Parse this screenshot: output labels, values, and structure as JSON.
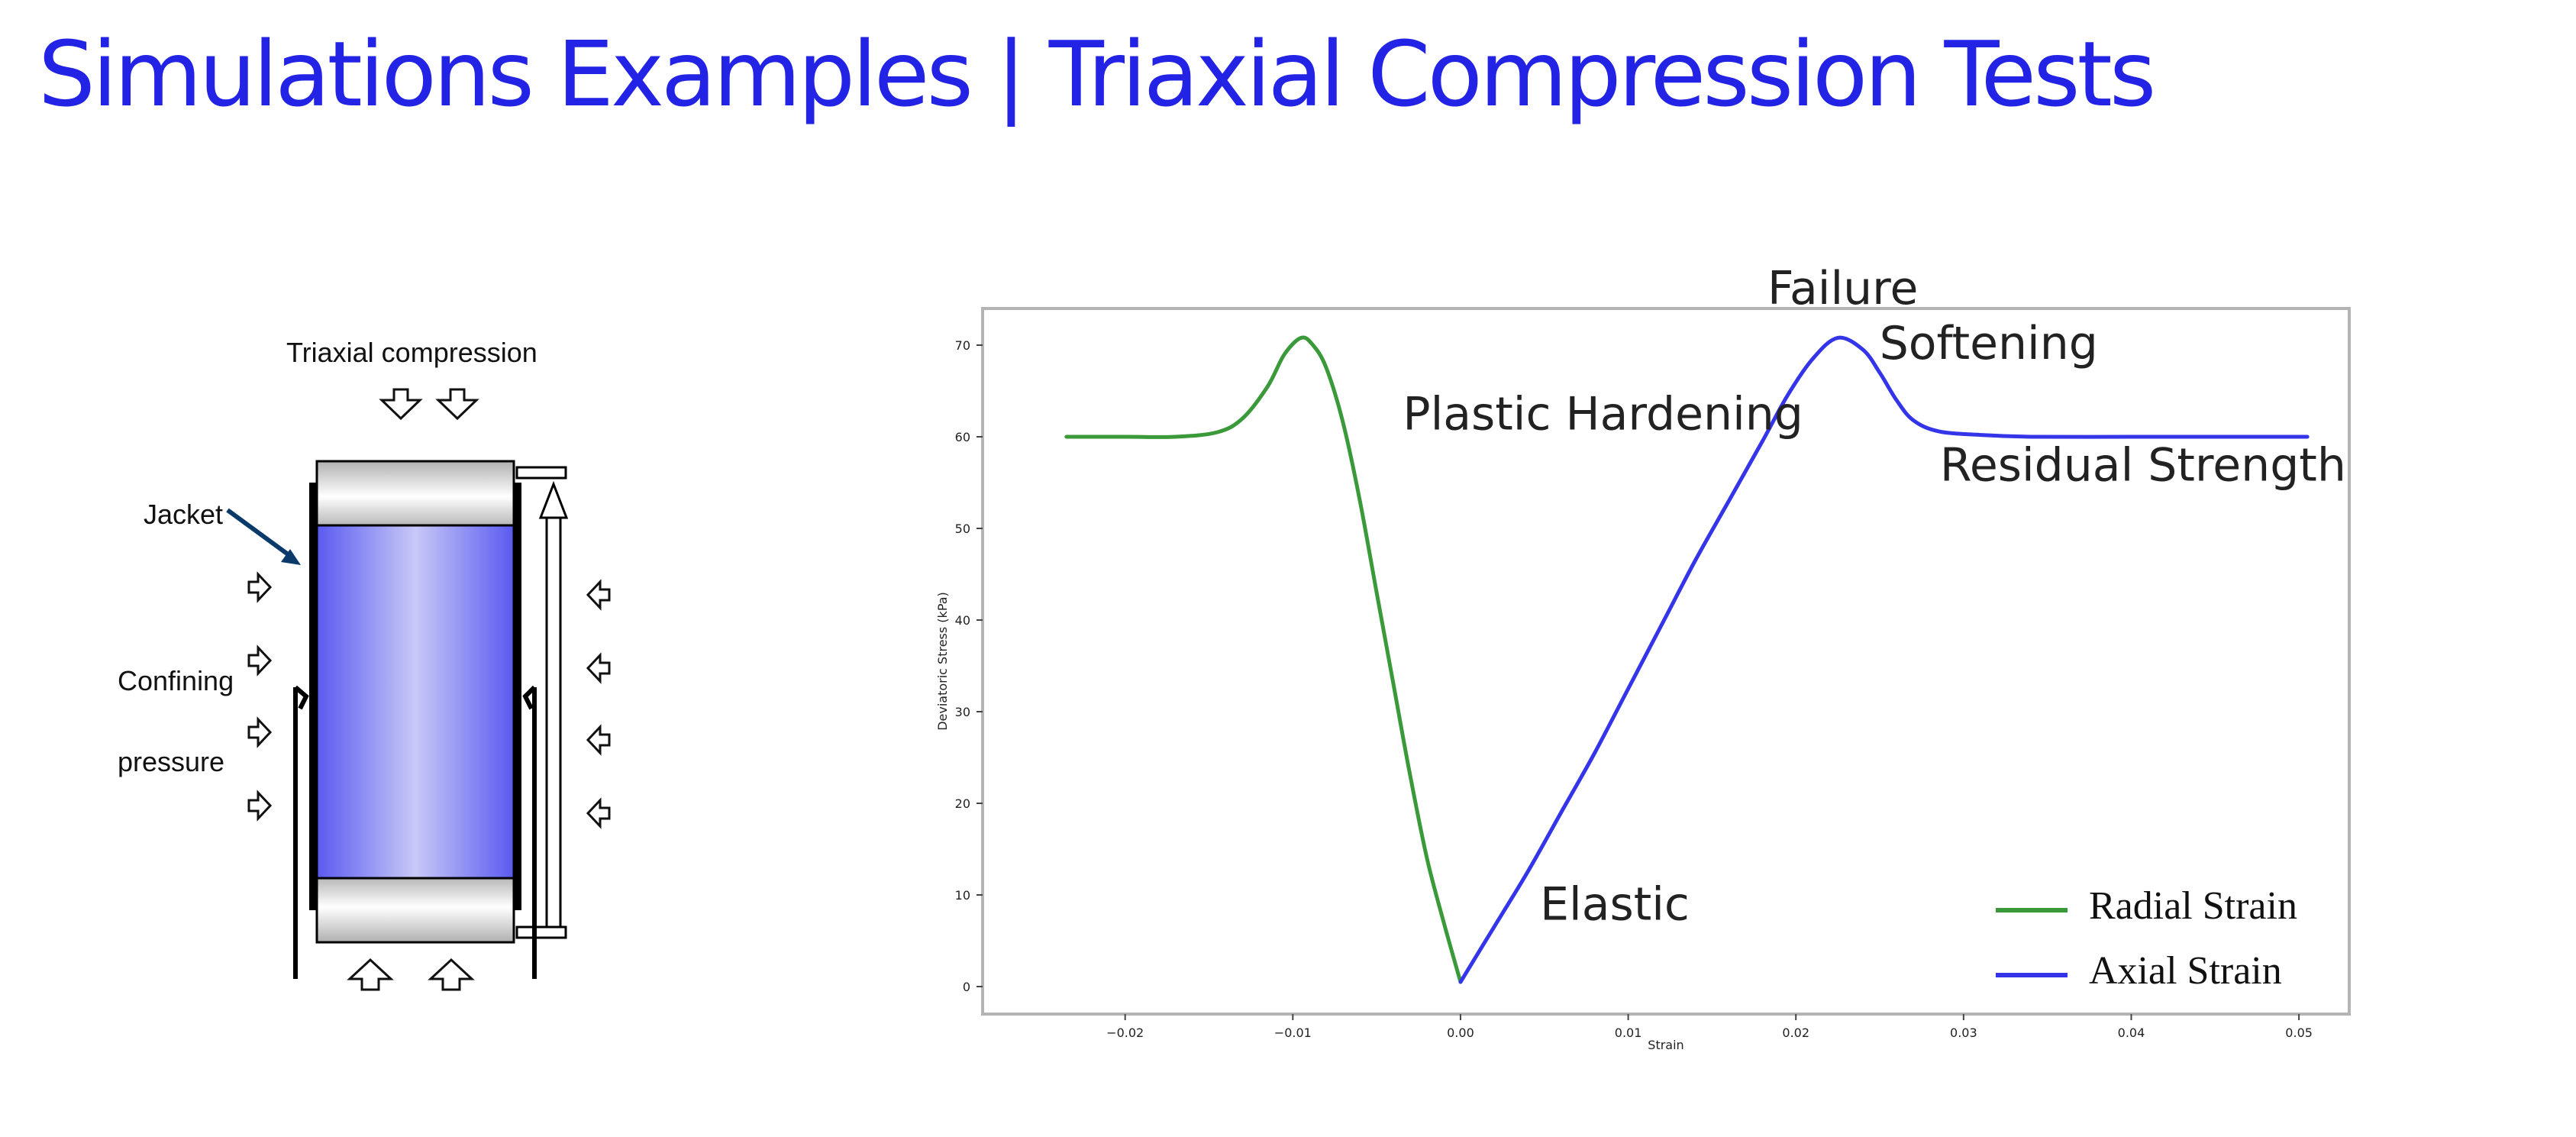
{
  "page": {
    "title": "Simulations Examples | Triaxial Compression Tests"
  },
  "diagram": {
    "title": "Triaxial compression",
    "jacket_label": "Jacket",
    "confining_label_1": "Confining",
    "confining_label_2": "pressure",
    "colors": {
      "sample": "#5a5af0",
      "sample_highlight": "#c8c8f8",
      "cap": "#b0b0b0",
      "arrow": "#0a3a6a"
    }
  },
  "chart_data": {
    "type": "line",
    "title": "",
    "xlabel": "Strain",
    "ylabel": "Deviatoric Stress (kPa)",
    "xlim": [
      -0.0285,
      0.053
    ],
    "ylim": [
      -3,
      74
    ],
    "xticks": [
      -0.02,
      -0.01,
      0.0,
      0.01,
      0.02,
      0.03,
      0.04,
      0.05
    ],
    "xtick_labels": [
      "−0.02",
      "−0.01",
      "0.00",
      "0.01",
      "0.02",
      "0.03",
      "0.04",
      "0.05"
    ],
    "yticks": [
      0,
      10,
      20,
      30,
      40,
      50,
      60,
      70
    ],
    "ytick_labels": [
      "0",
      "10",
      "20",
      "30",
      "40",
      "50",
      "60",
      "70"
    ],
    "grid": false,
    "legend_position": "bottom-right",
    "series": [
      {
        "name": "Radial Strain",
        "color": "#3a9a3a",
        "x": [
          -0.0235,
          -0.02,
          -0.017,
          -0.0145,
          -0.013,
          -0.0115,
          -0.0105,
          -0.0095,
          -0.0088,
          -0.008,
          -0.007,
          -0.006,
          -0.005,
          -0.004,
          -0.003,
          -0.002,
          -0.001,
          0.0
        ],
        "y": [
          60,
          60,
          60,
          60.5,
          62,
          65.5,
          69,
          70.8,
          70,
          67.5,
          61.5,
          53,
          43,
          33,
          23,
          14,
          7,
          0.5
        ]
      },
      {
        "name": "Axial Strain",
        "color": "#3434e8",
        "x": [
          0.0,
          0.002,
          0.004,
          0.006,
          0.008,
          0.01,
          0.012,
          0.014,
          0.016,
          0.018,
          0.0195,
          0.021,
          0.0225,
          0.024,
          0.025,
          0.026,
          0.027,
          0.0285,
          0.031,
          0.034,
          0.04,
          0.045,
          0.0505
        ],
        "y": [
          0.5,
          6.5,
          12.5,
          19,
          25.5,
          32.5,
          39.5,
          46.5,
          53,
          59.5,
          64.5,
          68.5,
          70.8,
          69.5,
          67,
          64,
          61.8,
          60.6,
          60.2,
          60,
          60,
          60,
          60
        ]
      }
    ],
    "annotations": [
      {
        "text": "Failure",
        "x": 0.0228,
        "y": 74.5
      },
      {
        "text": "Softening",
        "x": 0.0315,
        "y": 68.5
      },
      {
        "text": "Plastic Hardening",
        "x": 0.0085,
        "y": 60.8
      },
      {
        "text": "Residual Strength",
        "x": 0.0407,
        "y": 55.2
      },
      {
        "text": "Elastic",
        "x": 0.0092,
        "y": 7.3
      }
    ]
  }
}
